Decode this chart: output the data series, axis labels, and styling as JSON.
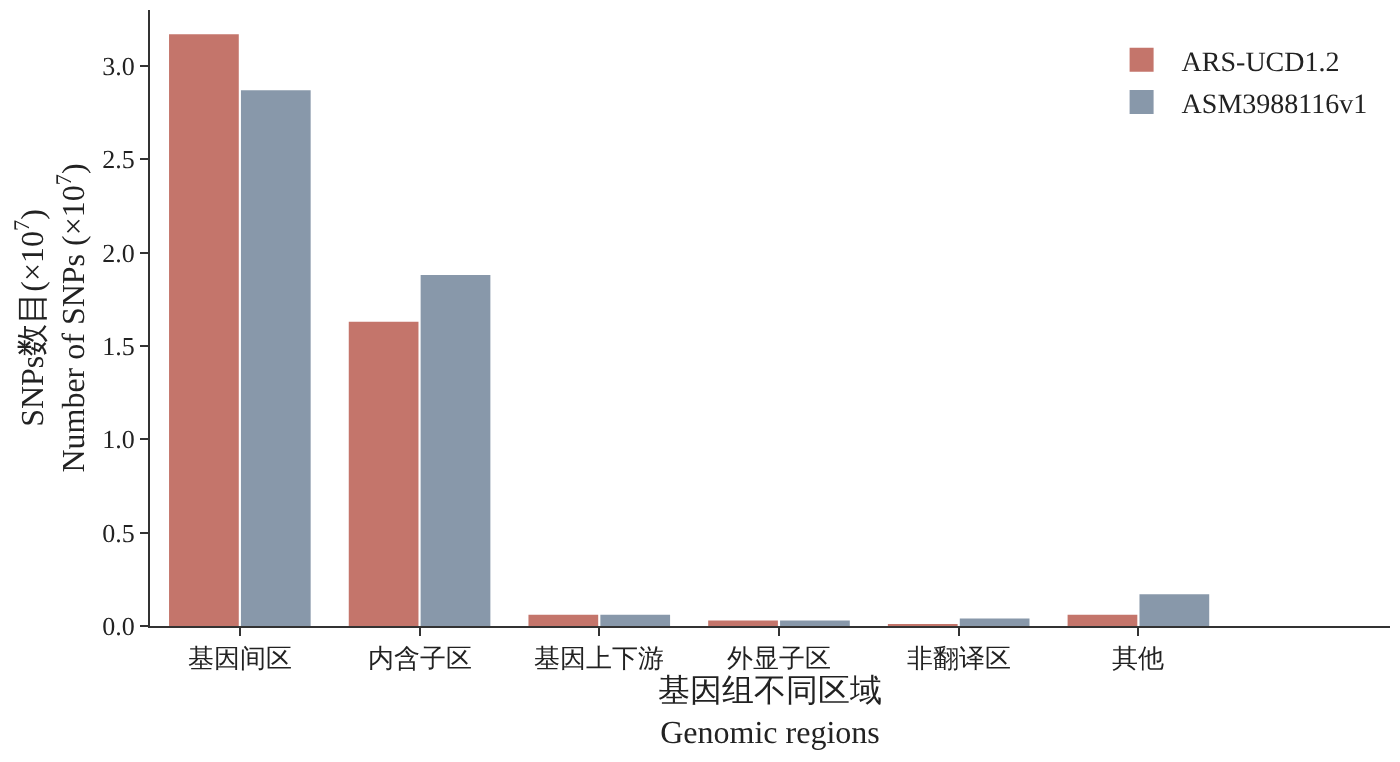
{
  "chart_data": {
    "type": "bar",
    "categories": [
      "基因间区",
      "内含子区",
      "基因上下游",
      "外显子区",
      "非翻译区",
      "其他"
    ],
    "series": [
      {
        "name": "ARS-UCD1.2",
        "color": "#c4756b",
        "values": [
          3.17,
          1.63,
          0.06,
          0.03,
          0.01,
          0.06
        ]
      },
      {
        "name": "ASM3988116v1",
        "color": "#8898aa",
        "values": [
          2.87,
          1.88,
          0.06,
          0.03,
          0.04,
          0.17
        ]
      }
    ],
    "xlabel": "基因组不同区域\nGenomic regions",
    "ylabel": "SNPs数目(×10$^{7}$)\nNumber of SNPs (×10$^{7}$)",
    "ylim": [
      0,
      3.3
    ],
    "yticks": [
      {
        "value": 0,
        "label": "0.0"
      },
      0.5,
      {
        "value": 1,
        "label": "1.0"
      },
      1.5,
      {
        "value": 2,
        "label": "2.0"
      },
      2.5,
      {
        "value": 3,
        "label": "3.0"
      }
    ],
    "legend": "top right"
  }
}
